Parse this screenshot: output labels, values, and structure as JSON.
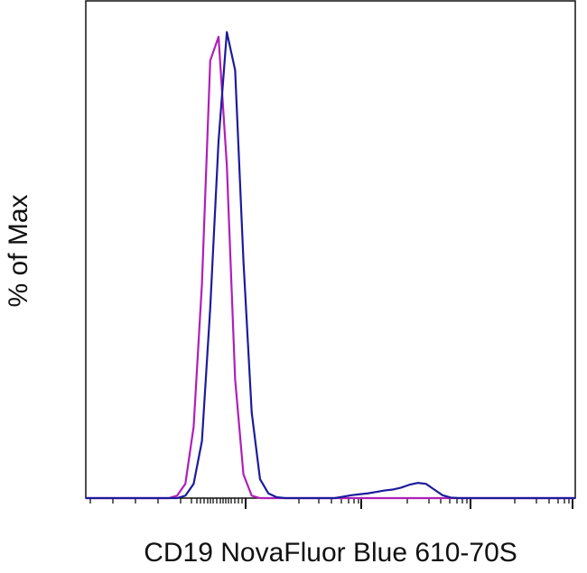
{
  "chart_data": {
    "type": "line",
    "x_label": "CD19 NovaFluor Blue 610-70S",
    "y_label": "% of Max",
    "ylim": [
      0,
      100
    ],
    "categories": [
      null,
      null,
      null,
      null,
      null,
      null,
      null,
      null,
      null,
      null,
      null,
      null,
      null,
      null,
      null,
      null,
      null,
      null,
      null,
      null,
      null,
      null,
      null,
      null,
      null,
      null,
      null,
      null,
      null,
      null,
      null,
      null,
      null,
      null,
      null,
      null,
      null,
      null,
      null,
      null,
      null,
      null,
      null,
      null,
      null,
      null,
      null,
      null,
      null,
      null,
      null,
      null,
      null,
      null,
      null,
      null,
      null,
      null,
      null,
      null
    ],
    "series": [
      {
        "color": "#b01fb8",
        "values": [
          0,
          0,
          0,
          0,
          0,
          0,
          0,
          0,
          0,
          0,
          0,
          0.5,
          3,
          15,
          45,
          92,
          97,
          70,
          25,
          5,
          0.5,
          0,
          0,
          0,
          0,
          0,
          0,
          0,
          0,
          0,
          0,
          0,
          0,
          0,
          0,
          0,
          0,
          0,
          0,
          0,
          0,
          0,
          0,
          0,
          0,
          0,
          0,
          0,
          0,
          0,
          0,
          0,
          0,
          0,
          0,
          0,
          0,
          0,
          0,
          0
        ]
      },
      {
        "color": "#1c1c9c",
        "values": [
          0,
          0,
          0,
          0,
          0,
          0,
          0,
          0,
          0,
          0,
          0,
          0,
          0.5,
          3,
          12,
          40,
          75,
          98,
          90,
          50,
          18,
          4,
          1,
          0.2,
          0,
          0,
          0,
          0,
          0,
          0,
          0,
          0.3,
          0.6,
          0.8,
          1,
          1.3,
          1.6,
          1.8,
          2.2,
          2.8,
          3.2,
          3,
          1.8,
          0.6,
          0.1,
          0,
          0,
          0,
          0,
          0,
          0,
          0,
          0,
          0,
          0,
          0,
          0,
          0,
          0,
          0
        ]
      }
    ]
  }
}
